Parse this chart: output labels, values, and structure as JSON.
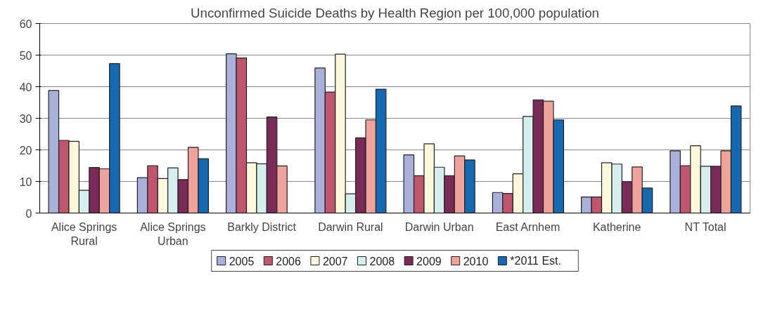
{
  "chart_data": {
    "type": "bar",
    "title": "Unconfirmed Suicide Deaths by Health Region per 100,000 population",
    "categories": [
      "Alice Springs\nRural",
      "Alice Springs\nUrban",
      "Barkly District",
      "Darwin Rural",
      "Darwin Urban",
      "East Arnhem",
      "Katherine",
      "NT Total"
    ],
    "series": [
      {
        "name": "2005",
        "color": "#a9b0da",
        "values": [
          38.8,
          11.2,
          50.4,
          45.9,
          18.4,
          6.5,
          5.1,
          19.7
        ]
      },
      {
        "name": "2006",
        "color": "#c0566e",
        "values": [
          23,
          15,
          49.1,
          38.3,
          11.8,
          6.2,
          5.1,
          15
        ]
      },
      {
        "name": "2007",
        "color": "#fbf8dc",
        "values": [
          22.7,
          10.9,
          15.9,
          50.3,
          21.9,
          12.4,
          15.9,
          21.3
        ]
      },
      {
        "name": "2008",
        "color": "#d7eeee",
        "values": [
          7.2,
          14.3,
          15.6,
          6.1,
          14.5,
          30.6,
          15.5,
          14.8
        ]
      },
      {
        "name": "2009",
        "color": "#7a2a56",
        "values": [
          14.4,
          10.6,
          30.4,
          23.8,
          11.8,
          35.8,
          9.9,
          14.8
        ]
      },
      {
        "name": "2010",
        "color": "#f0a39a",
        "values": [
          14,
          20.8,
          14.9,
          29.5,
          18.1,
          35.4,
          14.6,
          19.7
        ]
      },
      {
        "name": "*2011 Est.",
        "color": "#1569b0",
        "values": [
          47.3,
          17.2,
          null,
          39.2,
          16.8,
          29.5,
          7.9,
          33.9
        ]
      }
    ],
    "ylim": [
      0,
      60
    ],
    "yticks": [
      0,
      10,
      20,
      30,
      40,
      50,
      60
    ],
    "grid": "y",
    "legend": "bottom"
  }
}
